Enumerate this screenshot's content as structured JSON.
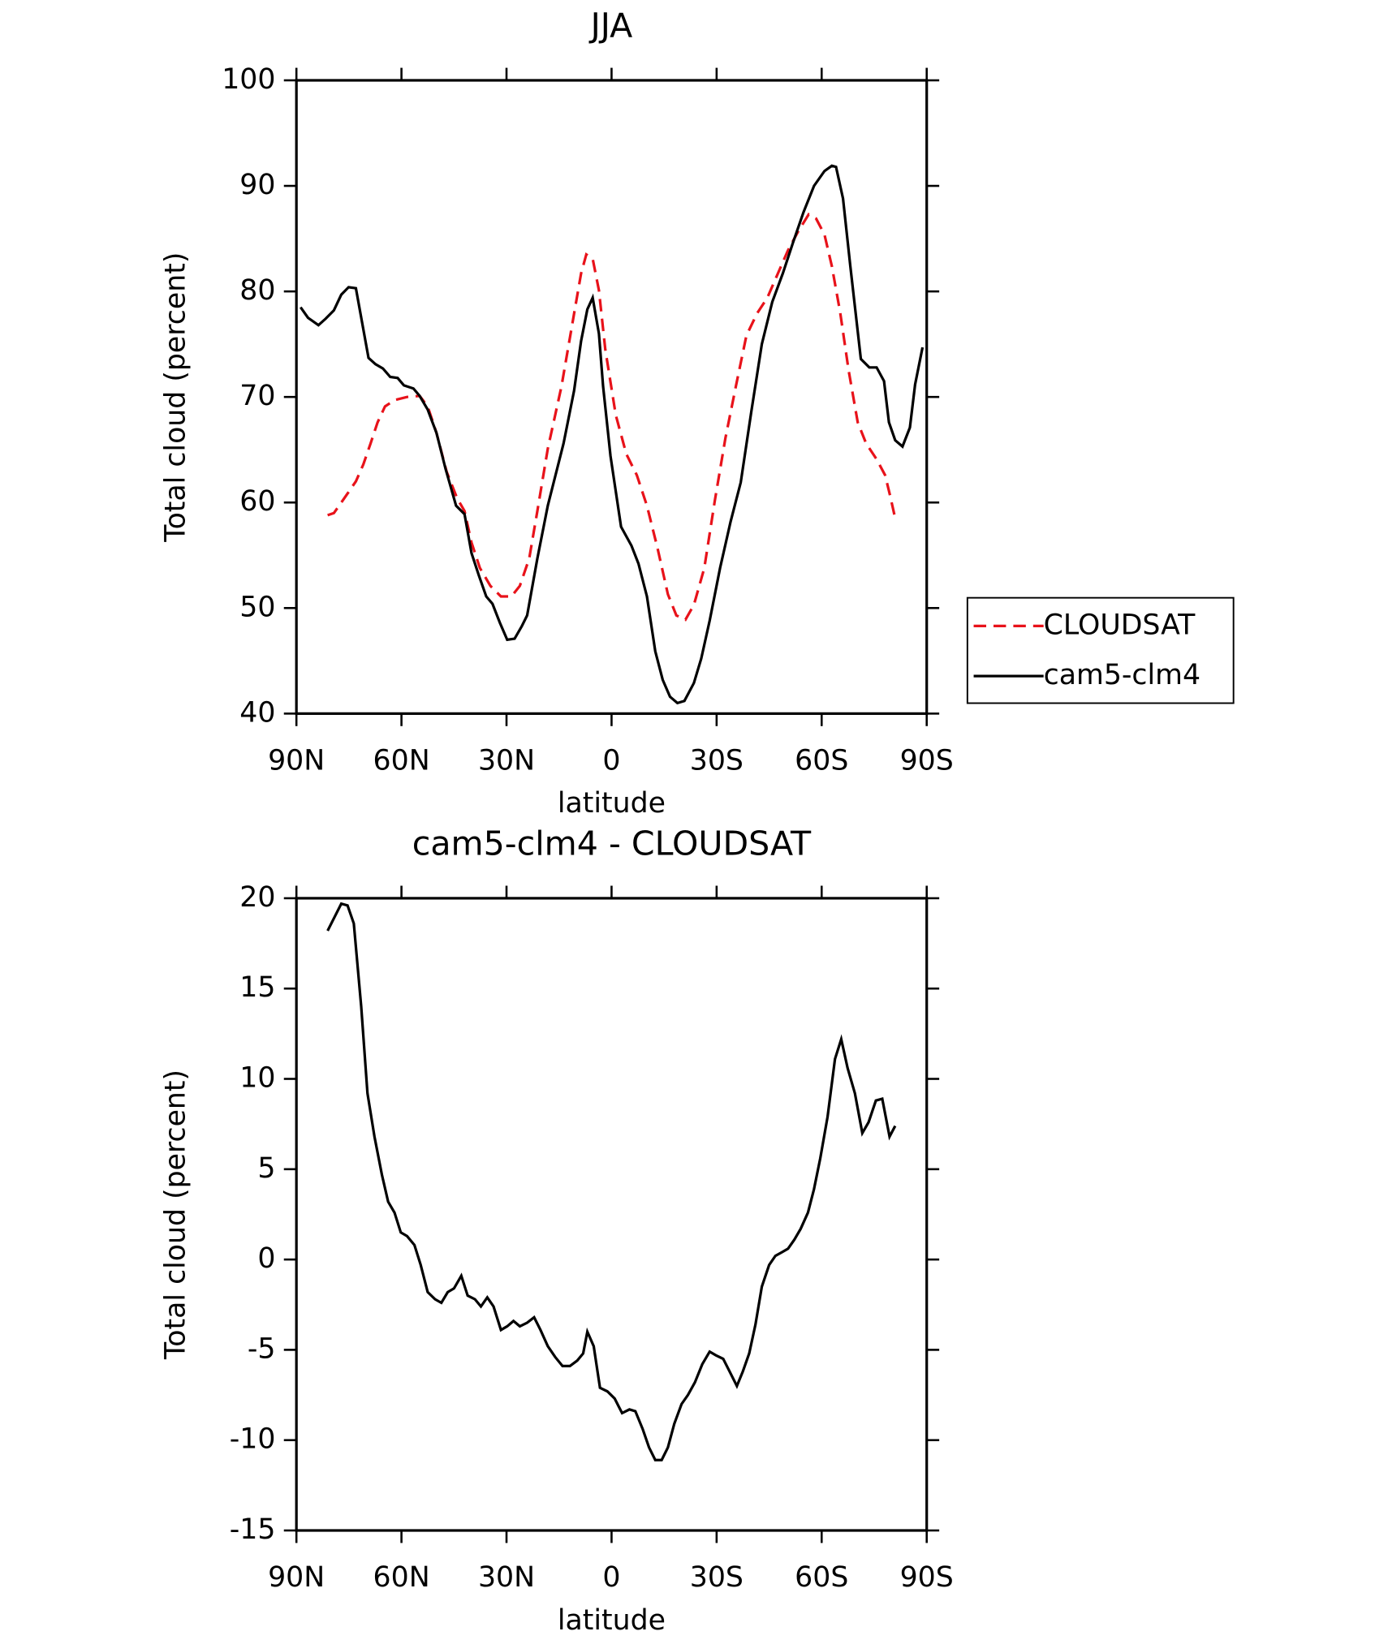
{
  "chart_data": [
    {
      "type": "line",
      "title": "JJA",
      "xlabel": "latitude",
      "ylabel": "Total cloud (percent)",
      "xlim": [
        90,
        -90
      ],
      "xticks": [
        {
          "value": 90,
          "label": "90N"
        },
        {
          "value": 60,
          "label": "60N"
        },
        {
          "value": 30,
          "label": "30N"
        },
        0,
        {
          "value": -30,
          "label": "30S"
        },
        {
          "value": -60,
          "label": "60S"
        },
        {
          "value": -90,
          "label": "90S"
        }
      ],
      "ylim": [
        40,
        100
      ],
      "yticks": [
        40,
        50,
        60,
        70,
        80,
        90,
        100
      ],
      "legend": "right",
      "series": [
        {
          "name": "CLOUDSAT",
          "color": "#e8121a",
          "dash": true,
          "x": [
            81.1,
            79.3,
            77.2,
            75.1,
            73,
            70.9,
            68.8,
            66.8,
            64.7,
            62,
            58.4,
            54.8,
            52.5,
            50,
            47.1,
            44.1,
            42,
            40,
            37.6,
            34.6,
            31.6,
            28.6,
            26.2,
            23.5,
            21.2,
            18.2,
            14.3,
            10.7,
            8.7,
            7.2,
            5.4,
            3.6,
            1.8,
            -1.2,
            -4.2,
            -7.2,
            -10.1,
            -13.1,
            -16.1,
            -18.5,
            -21.1,
            -23.5,
            -26.5,
            -29.5,
            -32.5,
            -35.5,
            -38.5,
            -41.5,
            -44.5,
            -47.5,
            -50.4,
            -53.3,
            -56.3,
            -58.4,
            -60.8,
            -62.9,
            -65.3,
            -67.7,
            -70.3,
            -72.7,
            -75.7,
            -78.1,
            -79.5,
            -81
          ],
          "values": [
            58.8,
            59.0,
            60.0,
            61.0,
            62.0,
            63.6,
            65.6,
            67.6,
            69.1,
            69.7,
            70.0,
            70.1,
            69.1,
            66.6,
            62.9,
            60.4,
            59.2,
            56.2,
            53.8,
            52.1,
            51.1,
            51.1,
            52.1,
            54.7,
            59.2,
            65.1,
            71.0,
            77.9,
            81.7,
            83.5,
            83.1,
            80.1,
            74.5,
            68.3,
            64.6,
            62.6,
            59.7,
            55.7,
            51.3,
            49.3,
            48.9,
            50.3,
            53.8,
            60.2,
            66.1,
            71.0,
            75.8,
            77.9,
            79.4,
            81.7,
            83.9,
            85.7,
            87.3,
            86.9,
            85.4,
            82.4,
            78.0,
            72.5,
            67.6,
            65.6,
            64.1,
            62.6,
            60.7,
            58.5
          ]
        },
        {
          "name": "cam5-clm4",
          "color": "#000000",
          "dash": false,
          "x": [
            88.8,
            86.7,
            83.7,
            81.7,
            79.3,
            77.2,
            75.1,
            73,
            69.4,
            67.4,
            65.3,
            63.2,
            61.1,
            59.3,
            56.6,
            54.8,
            52.5,
            50,
            47.4,
            44.4,
            42,
            40,
            37.9,
            35.8,
            34,
            31.9,
            29.8,
            27.7,
            25.6,
            24.1,
            21.2,
            18.2,
            13.7,
            10.7,
            8.7,
            6.9,
            5.4,
            3.6,
            2.4,
            0.3,
            -2.7,
            -5.7,
            -7.7,
            -10.1,
            -12.5,
            -14.6,
            -16.7,
            -18.8,
            -20.8,
            -23.5,
            -25.6,
            -28,
            -31,
            -34,
            -36.9,
            -39.9,
            -42.9,
            -45.9,
            -48.9,
            -51.8,
            -54.8,
            -57.8,
            -60.8,
            -62.9,
            -64.1,
            -66.1,
            -68.2,
            -71.2,
            -73.6,
            -75.7,
            -77.8,
            -79.2,
            -81,
            -83.1,
            -85.2,
            -86.7,
            -88.8
          ],
          "values": [
            78.5,
            77.5,
            76.8,
            77.4,
            78.2,
            79.7,
            80.4,
            80.3,
            73.7,
            73.1,
            72.7,
            71.9,
            71.8,
            71.1,
            70.8,
            70.1,
            68.8,
            66.6,
            63.2,
            59.7,
            58.9,
            55.2,
            53.1,
            51.1,
            50.4,
            48.6,
            47.0,
            47.1,
            48.3,
            49.3,
            54.7,
            59.7,
            65.6,
            70.6,
            75.3,
            78.3,
            79.4,
            76.0,
            71.0,
            64.4,
            57.7,
            55.9,
            54.2,
            51.1,
            45.9,
            43.2,
            41.6,
            41.0,
            41.2,
            42.9,
            45.2,
            48.8,
            53.8,
            58.2,
            61.9,
            68.6,
            75.0,
            79.0,
            81.7,
            84.6,
            87.5,
            90.0,
            91.4,
            91.9,
            91.8,
            88.8,
            82.4,
            73.6,
            72.8,
            72.8,
            71.5,
            67.6,
            65.9,
            65.3,
            67.1,
            71.2,
            74.7
          ]
        }
      ]
    },
    {
      "type": "line",
      "title": "cam5-clm4 - CLOUDSAT",
      "xlabel": "latitude",
      "ylabel": "Total cloud (percent)",
      "xlim": [
        90,
        -90
      ],
      "xticks": [
        {
          "value": 90,
          "label": "90N"
        },
        {
          "value": 60,
          "label": "60N"
        },
        {
          "value": 30,
          "label": "30N"
        },
        0,
        {
          "value": -30,
          "label": "30S"
        },
        {
          "value": -60,
          "label": "60S"
        },
        {
          "value": -90,
          "label": "90S"
        }
      ],
      "ylim": [
        -15,
        20
      ],
      "yticks": [
        -15,
        -10,
        -5,
        0,
        5,
        10,
        15,
        20
      ],
      "series": [
        {
          "color": "#000000",
          "x": [
            81.1,
            79,
            77.2,
            75.4,
            73.6,
            71.5,
            69.7,
            67.7,
            65.6,
            63.8,
            62,
            60.2,
            58.4,
            56.3,
            54.5,
            52.5,
            50.4,
            48.6,
            46.8,
            45,
            42.9,
            41.1,
            39,
            37.3,
            35.5,
            33.7,
            31.6,
            29.8,
            28,
            26.2,
            24.1,
            22.1,
            20.3,
            18.2,
            16.1,
            14,
            11.9,
            9.8,
            8.1,
            6.9,
            5.1,
            3.3,
            1.2,
            -0.9,
            -3,
            -5.1,
            -6.8,
            -8.9,
            -10.7,
            -12.5,
            -14.3,
            -16.1,
            -17.9,
            -20,
            -21.8,
            -23.8,
            -25.9,
            -28,
            -29.8,
            -31.9,
            -33.7,
            -35.8,
            -37.5,
            -39.3,
            -41.1,
            -42.9,
            -45,
            -46.8,
            -48.6,
            -50.4,
            -52.2,
            -54,
            -56.1,
            -57.8,
            -59.6,
            -61.7,
            -63.8,
            -65.6,
            -67.4,
            -69.5,
            -71.6,
            -73.4,
            -75.5,
            -77.3,
            -79.4,
            -81
          ],
          "values": [
            18.2,
            19.0,
            19.7,
            19.6,
            18.6,
            14.0,
            9.2,
            6.8,
            4.7,
            3.2,
            2.6,
            1.5,
            1.3,
            0.8,
            -0.3,
            -1.8,
            -2.2,
            -2.4,
            -1.8,
            -1.6,
            -0.9,
            -2.0,
            -2.2,
            -2.6,
            -2.1,
            -2.6,
            -3.9,
            -3.7,
            -3.4,
            -3.7,
            -3.5,
            -3.2,
            -3.9,
            -4.8,
            -5.4,
            -5.9,
            -5.9,
            -5.6,
            -5.2,
            -4.0,
            -4.8,
            -7.1,
            -7.3,
            -7.7,
            -8.5,
            -8.3,
            -8.4,
            -9.4,
            -10.4,
            -11.1,
            -11.1,
            -10.4,
            -9.1,
            -8.0,
            -7.5,
            -6.8,
            -5.8,
            -5.1,
            -5.3,
            -5.5,
            -6.2,
            -7.0,
            -6.2,
            -5.2,
            -3.6,
            -1.5,
            -0.3,
            0.2,
            0.4,
            0.6,
            1.1,
            1.7,
            2.6,
            3.9,
            5.6,
            7.9,
            11.1,
            12.2,
            10.6,
            9.2,
            7.0,
            7.6,
            8.8,
            8.9,
            6.8,
            7.4
          ]
        }
      ]
    }
  ]
}
